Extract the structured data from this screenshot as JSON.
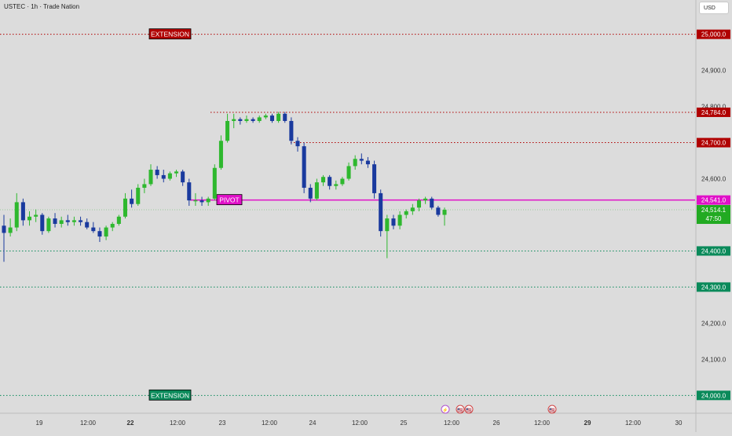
{
  "header": {
    "title": "USTEC · 1h · Trade Nation",
    "currency": "USD"
  },
  "colors": {
    "background": "#dcdcdc",
    "bull": "#2eb82e",
    "bear": "#1a3a9e",
    "pivot": "#e010c8",
    "resistance": "#b00000",
    "support": "#0a8a5a",
    "current": "#22aa22"
  },
  "chart_data": {
    "type": "candlestick",
    "symbol": "USTEC",
    "timeframe": "1h",
    "ylim": [
      23955,
      25095
    ],
    "y_ticks": [
      "25,000.0",
      "24,900.0",
      "24,800.0",
      "24,700.0",
      "24,600.0",
      "24,500.0",
      "24,400.0",
      "24,300.0",
      "24,200.0",
      "24,100.0",
      "24,000.0"
    ],
    "x_ticks": [
      "19",
      "12:00",
      "22",
      "12:00",
      "23",
      "12:00",
      "24",
      "12:00",
      "25",
      "12:00",
      "26",
      "12:00",
      "29",
      "12:00",
      "30"
    ],
    "bold_x_ticks": [
      "22",
      "29"
    ],
    "levels": [
      {
        "label": "EXTENSION",
        "price": 25000,
        "price_label": "25,000.0",
        "color": "#b00000",
        "style": "dotted",
        "name": "extension-top-line"
      },
      {
        "label": "",
        "price": 24784,
        "price_label": "24,784.0",
        "color": "#b00000",
        "style": "dotted",
        "name": "resistance-24784-line"
      },
      {
        "label": "",
        "price": 24700,
        "price_label": "24,700.0",
        "color": "#b00000",
        "style": "dotted",
        "name": "resistance-24700-line"
      },
      {
        "label": "PIVOT",
        "price": 24541,
        "price_label": "24,541.0",
        "color": "#e010c8",
        "style": "solid",
        "name": "pivot-line"
      },
      {
        "label": "",
        "price": 24400,
        "price_label": "24,400.0",
        "color": "#0a8a5a",
        "style": "dotted",
        "name": "support-24400-line"
      },
      {
        "label": "",
        "price": 24300,
        "price_label": "24,300.0",
        "color": "#0a8a5a",
        "style": "dotted",
        "name": "support-24300-line"
      },
      {
        "label": "EXTENSION",
        "price": 24000,
        "price_label": "24,000.0",
        "color": "#0a8a5a",
        "style": "dotted",
        "name": "extension-bottom-line"
      }
    ],
    "current_price": {
      "price": 24514.1,
      "price_label": "24,514.1",
      "countdown": "47:50"
    },
    "candles": [
      [
        24470,
        24500,
        24370,
        24450
      ],
      [
        24450,
        24490,
        24440,
        24465
      ],
      [
        24465,
        24560,
        24455,
        24535
      ],
      [
        24535,
        24545,
        24470,
        24485
      ],
      [
        24485,
        24510,
        24470,
        24495
      ],
      [
        24495,
        24515,
        24480,
        24500
      ],
      [
        24500,
        24505,
        24445,
        24455
      ],
      [
        24455,
        24495,
        24450,
        24490
      ],
      [
        24490,
        24505,
        24465,
        24475
      ],
      [
        24475,
        24495,
        24465,
        24485
      ],
      [
        24485,
        24500,
        24470,
        24480
      ],
      [
        24480,
        24495,
        24470,
        24485
      ],
      [
        24485,
        24495,
        24470,
        24480
      ],
      [
        24480,
        24490,
        24460,
        24465
      ],
      [
        24465,
        24480,
        24450,
        24455
      ],
      [
        24455,
        24465,
        24425,
        24440
      ],
      [
        24440,
        24470,
        24430,
        24465
      ],
      [
        24465,
        24480,
        24455,
        24475
      ],
      [
        24475,
        24500,
        24470,
        24495
      ],
      [
        24495,
        24560,
        24490,
        24545
      ],
      [
        24545,
        24570,
        24520,
        24530
      ],
      [
        24530,
        24585,
        24525,
        24575
      ],
      [
        24575,
        24600,
        24560,
        24585
      ],
      [
        24585,
        24640,
        24580,
        24625
      ],
      [
        24625,
        24635,
        24600,
        24610
      ],
      [
        24610,
        24625,
        24590,
        24600
      ],
      [
        24600,
        24620,
        24595,
        24615
      ],
      [
        24615,
        24625,
        24605,
        24620
      ],
      [
        24620,
        24625,
        24580,
        24590
      ],
      [
        24590,
        24600,
        24525,
        24540
      ],
      [
        24540,
        24560,
        24525,
        24540
      ],
      [
        24540,
        24550,
        24525,
        24535
      ],
      [
        24535,
        24550,
        24525,
        24545
      ],
      [
        24545,
        24640,
        24540,
        24630
      ],
      [
        24630,
        24720,
        24625,
        24705
      ],
      [
        24705,
        24780,
        24700,
        24760
      ],
      [
        24760,
        24780,
        24740,
        24765
      ],
      [
        24765,
        24770,
        24750,
        24760
      ],
      [
        24760,
        24775,
        24755,
        24765
      ],
      [
        24765,
        24770,
        24755,
        24760
      ],
      [
        24760,
        24775,
        24755,
        24770
      ],
      [
        24770,
        24780,
        24765,
        24775
      ],
      [
        24775,
        24780,
        24755,
        24760
      ],
      [
        24760,
        24785,
        24755,
        24780
      ],
      [
        24780,
        24785,
        24755,
        24760
      ],
      [
        24760,
        24770,
        24695,
        24705
      ],
      [
        24705,
        24715,
        24675,
        24690
      ],
      [
        24690,
        24700,
        24560,
        24575
      ],
      [
        24575,
        24585,
        24535,
        24545
      ],
      [
        24545,
        24600,
        24540,
        24590
      ],
      [
        24590,
        24610,
        24580,
        24605
      ],
      [
        24605,
        24610,
        24570,
        24580
      ],
      [
        24580,
        24595,
        24570,
        24585
      ],
      [
        24585,
        24605,
        24580,
        24600
      ],
      [
        24600,
        24645,
        24595,
        24635
      ],
      [
        24635,
        24665,
        24625,
        24655
      ],
      [
        24655,
        24670,
        24640,
        24650
      ],
      [
        24650,
        24660,
        24630,
        24640
      ],
      [
        24640,
        24650,
        24545,
        24560
      ],
      [
        24560,
        24570,
        24440,
        24455
      ],
      [
        24455,
        24500,
        24380,
        24490
      ],
      [
        24490,
        24500,
        24460,
        24470
      ],
      [
        24470,
        24510,
        24460,
        24500
      ],
      [
        24500,
        24515,
        24490,
        24510
      ],
      [
        24510,
        24530,
        24500,
        24520
      ],
      [
        24520,
        24545,
        24510,
        24540
      ],
      [
        24540,
        24550,
        24530,
        24545
      ],
      [
        24545,
        24550,
        24515,
        24520
      ],
      [
        24520,
        24525,
        24495,
        24500
      ],
      [
        24500,
        24520,
        24470,
        24514
      ]
    ]
  },
  "events": [
    "⚡",
    "🇺🇸",
    "🇺🇸",
    "🇺🇸"
  ]
}
